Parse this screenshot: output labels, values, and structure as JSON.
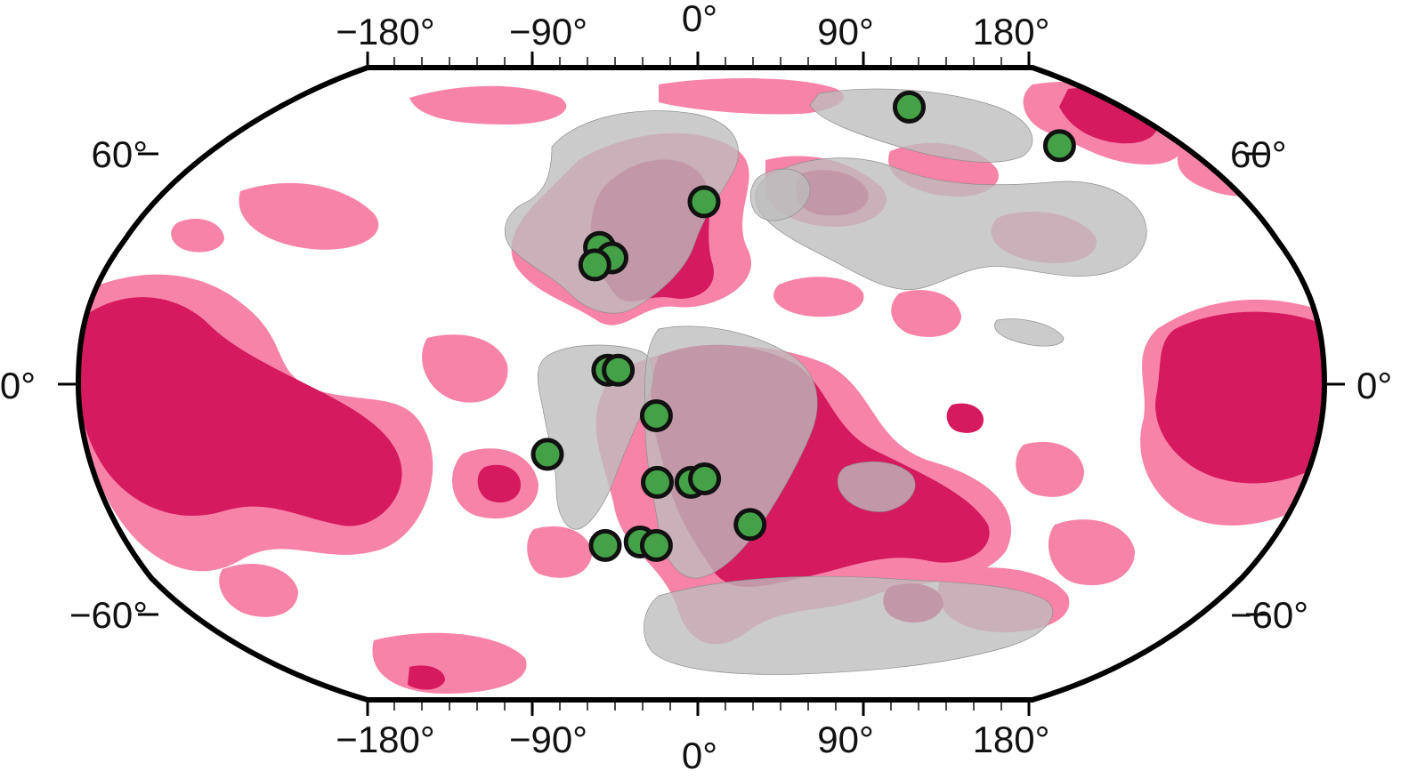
{
  "map": {
    "projection": "robinson",
    "colors": {
      "ocean": "#ffffff",
      "anomaly_light": "#f883a8",
      "anomaly_dark": "#d61a5f",
      "continents": "#bdbdbd",
      "sites": "#45a147",
      "frame": "#000000"
    },
    "axis": {
      "top_labels": [
        "−180°",
        "−90°",
        "0°",
        "90°",
        "180°"
      ],
      "bottom_labels": [
        "−180°",
        "−90°",
        "0°",
        "90°",
        "180°"
      ],
      "left_labels": [
        "60°",
        "0°",
        "−60°"
      ],
      "right_labels": [
        "60°",
        "0°",
        "−60°"
      ]
    },
    "sites": [
      {
        "lon": 82,
        "lat": 79
      },
      {
        "lon": 128,
        "lat": 68
      },
      {
        "lon": 2,
        "lat": 52
      },
      {
        "lon": -30,
        "lat": 39
      },
      {
        "lon": -26,
        "lat": 36
      },
      {
        "lon": -31,
        "lat": 34
      },
      {
        "lon": -26,
        "lat": 4
      },
      {
        "lon": -23,
        "lat": 4
      },
      {
        "lon": -12,
        "lat": -9
      },
      {
        "lon": -44,
        "lat": -20
      },
      {
        "lon": -12,
        "lat": -28
      },
      {
        "lon": -2,
        "lat": -28
      },
      {
        "lon": 2,
        "lat": -27
      },
      {
        "lon": 16,
        "lat": -40
      },
      {
        "lon": -29,
        "lat": -46
      },
      {
        "lon": -18,
        "lat": -45
      },
      {
        "lon": -13,
        "lat": -46
      }
    ]
  }
}
